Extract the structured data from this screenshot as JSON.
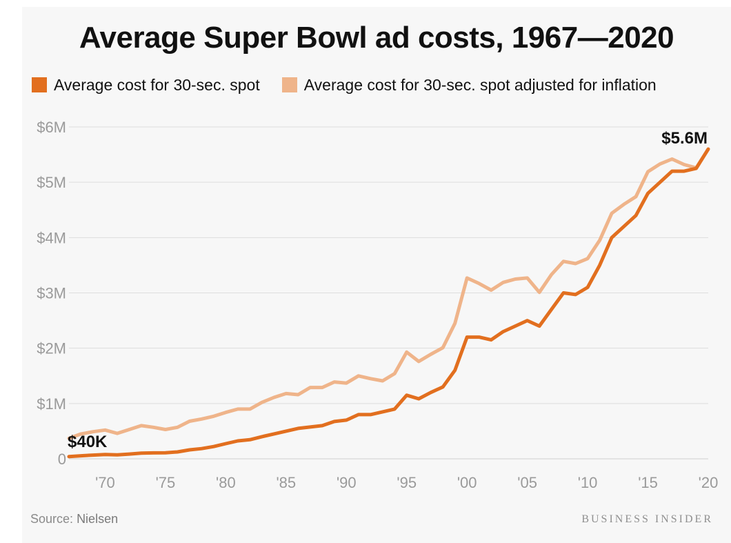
{
  "header": {
    "title": "Average Super Bowl ad costs, 1967—2020"
  },
  "footer": {
    "source_label": "Source:",
    "source_name": "Nielsen",
    "brand": "BUSINESS INSIDER"
  },
  "colors": {
    "nominal": "#e26f1f",
    "adjusted": "#efb48a",
    "grid": "#dddddd",
    "tick": "#9a9a9a"
  },
  "chart_data": {
    "type": "line",
    "title": "Average Super Bowl ad costs, 1967—2020",
    "xlabel": "",
    "ylabel": "",
    "xlim": [
      1967,
      2020
    ],
    "ylim": [
      0,
      6000000
    ],
    "grid": true,
    "legend_position": "top-left",
    "y_ticks": [
      {
        "value": 0,
        "label": "0"
      },
      {
        "value": 1000000,
        "label": "$1M"
      },
      {
        "value": 2000000,
        "label": "$2M"
      },
      {
        "value": 3000000,
        "label": "$3M"
      },
      {
        "value": 4000000,
        "label": "$4M"
      },
      {
        "value": 5000000,
        "label": "$5M"
      },
      {
        "value": 6000000,
        "label": "$6M"
      }
    ],
    "x_ticks": [
      {
        "value": 1970,
        "label": "'70"
      },
      {
        "value": 1975,
        "label": "'75"
      },
      {
        "value": 1980,
        "label": "'80"
      },
      {
        "value": 1985,
        "label": "'85"
      },
      {
        "value": 1990,
        "label": "'90"
      },
      {
        "value": 1995,
        "label": "'95"
      },
      {
        "value": 2000,
        "label": "'00"
      },
      {
        "value": 2005,
        "label": "'05"
      },
      {
        "value": 2010,
        "label": "'10"
      },
      {
        "value": 2015,
        "label": "'15"
      },
      {
        "value": 2020,
        "label": "'20"
      }
    ],
    "x": [
      1967,
      1968,
      1969,
      1970,
      1971,
      1972,
      1973,
      1974,
      1975,
      1976,
      1977,
      1978,
      1979,
      1980,
      1981,
      1982,
      1983,
      1984,
      1985,
      1986,
      1987,
      1988,
      1989,
      1990,
      1991,
      1992,
      1993,
      1994,
      1995,
      1996,
      1997,
      1998,
      1999,
      2000,
      2001,
      2002,
      2003,
      2004,
      2005,
      2006,
      2007,
      2008,
      2009,
      2010,
      2011,
      2012,
      2013,
      2014,
      2015,
      2016,
      2017,
      2018,
      2019,
      2020
    ],
    "series": [
      {
        "name": "Average cost for 30-sec. spot",
        "color": "#e26f1f",
        "values": [
          40000,
          55000,
          67000,
          78000,
          72000,
          86000,
          103000,
          107000,
          110000,
          125000,
          162000,
          185000,
          222000,
          275000,
          324000,
          345000,
          400000,
          450000,
          500000,
          550000,
          575000,
          600000,
          675000,
          700000,
          800000,
          800000,
          850000,
          900000,
          1150000,
          1085000,
          1200000,
          1300000,
          1600000,
          2200000,
          2200000,
          2150000,
          2300000,
          2400000,
          2500000,
          2400000,
          2700000,
          3000000,
          2970000,
          3100000,
          3500000,
          4000000,
          4200000,
          4400000,
          4800000,
          5000000,
          5200000,
          5200000,
          5250000,
          5600000
        ]
      },
      {
        "name": "Average cost for 30-sec. spot adjusted for inflation",
        "color": "#efb48a",
        "values": [
          370000,
          450000,
          490000,
          520000,
          460000,
          530000,
          600000,
          570000,
          530000,
          570000,
          680000,
          720000,
          770000,
          840000,
          900000,
          900000,
          1020000,
          1110000,
          1180000,
          1160000,
          1290000,
          1290000,
          1390000,
          1370000,
          1500000,
          1450000,
          1410000,
          1540000,
          1930000,
          1760000,
          1890000,
          2010000,
          2450000,
          3270000,
          3170000,
          3050000,
          3190000,
          3250000,
          3270000,
          3010000,
          3330000,
          3570000,
          3530000,
          3620000,
          3950000,
          4440000,
          4600000,
          4740000,
          5190000,
          5330000,
          5420000,
          5320000,
          5260000,
          5600000
        ]
      }
    ],
    "annotations": [
      {
        "text": "$40K",
        "x": 1967,
        "y": 40000
      },
      {
        "text": "$5.6M",
        "x": 2020,
        "y": 5600000
      }
    ]
  }
}
